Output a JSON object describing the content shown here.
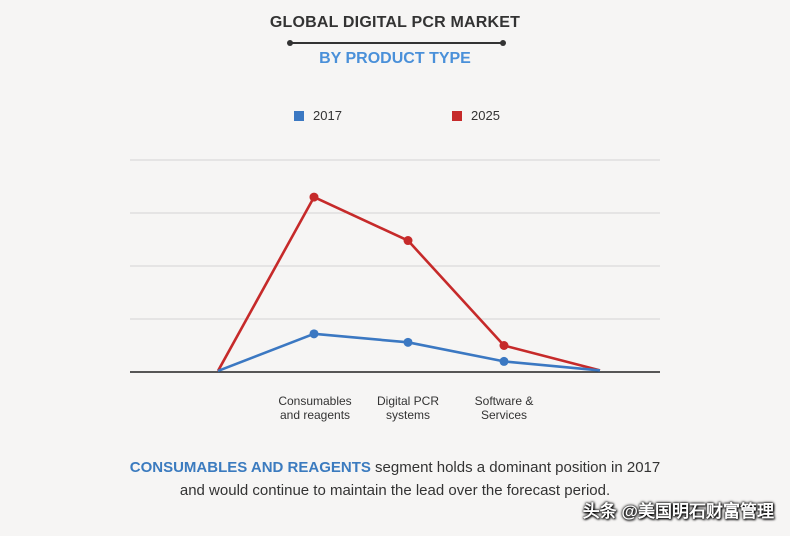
{
  "title": "GLOBAL DIGITAL PCR MARKET",
  "subtitle": "BY PRODUCT TYPE",
  "legend": [
    {
      "label": "2017",
      "color": "#3b78c2"
    },
    {
      "label": "2025",
      "color": "#c62a2a"
    }
  ],
  "chart_data": {
    "type": "line",
    "title": "GLOBAL DIGITAL PCR MARKET",
    "subtitle": "BY PRODUCT TYPE",
    "categories": [
      "",
      "Consumables\nand reagents",
      "Digital PCR\nsystems",
      "Software &\nServices",
      ""
    ],
    "series": [
      {
        "name": "2017",
        "color": "#3b78c2",
        "values": [
          0.1,
          3.6,
          2.8,
          1.0,
          0.15
        ]
      },
      {
        "name": "2025",
        "color": "#c62a2a",
        "values": [
          0.1,
          16.5,
          12.4,
          2.5,
          0.15
        ]
      }
    ],
    "ylim": [
      0,
      20
    ],
    "gridlines": [
      5,
      10,
      15,
      20
    ],
    "xlabel": "",
    "ylabel": ""
  },
  "caption": {
    "highlight": "CONSUMABLES AND REAGENTS",
    "text": "segment holds a dominant position in 2017 and would continue to maintain the lead over the forecast period."
  },
  "watermark": "头条 @美国明石财富管理"
}
